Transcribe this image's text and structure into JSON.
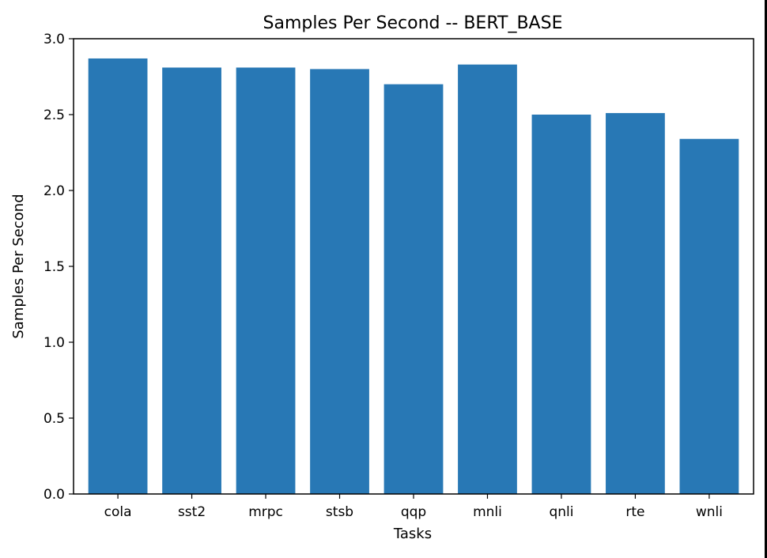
{
  "chart_data": {
    "type": "bar",
    "title": "Samples Per Second -- BERT_BASE",
    "xlabel": "Tasks",
    "ylabel": "Samples Per Second",
    "categories": [
      "cola",
      "sst2",
      "mrpc",
      "stsb",
      "qqp",
      "mnli",
      "qnli",
      "rte",
      "wnli"
    ],
    "values": [
      2.87,
      2.81,
      2.81,
      2.8,
      2.7,
      2.83,
      2.5,
      2.51,
      2.34
    ],
    "ylim": [
      0,
      3.0
    ],
    "yticks": [
      0.0,
      0.5,
      1.0,
      1.5,
      2.0,
      2.5,
      3.0
    ],
    "ytick_labels": [
      "0.0",
      "0.5",
      "1.0",
      "1.5",
      "2.0",
      "2.5",
      "3.0"
    ],
    "grid": false,
    "legend": "none",
    "bar_color": "#2878b5"
  }
}
